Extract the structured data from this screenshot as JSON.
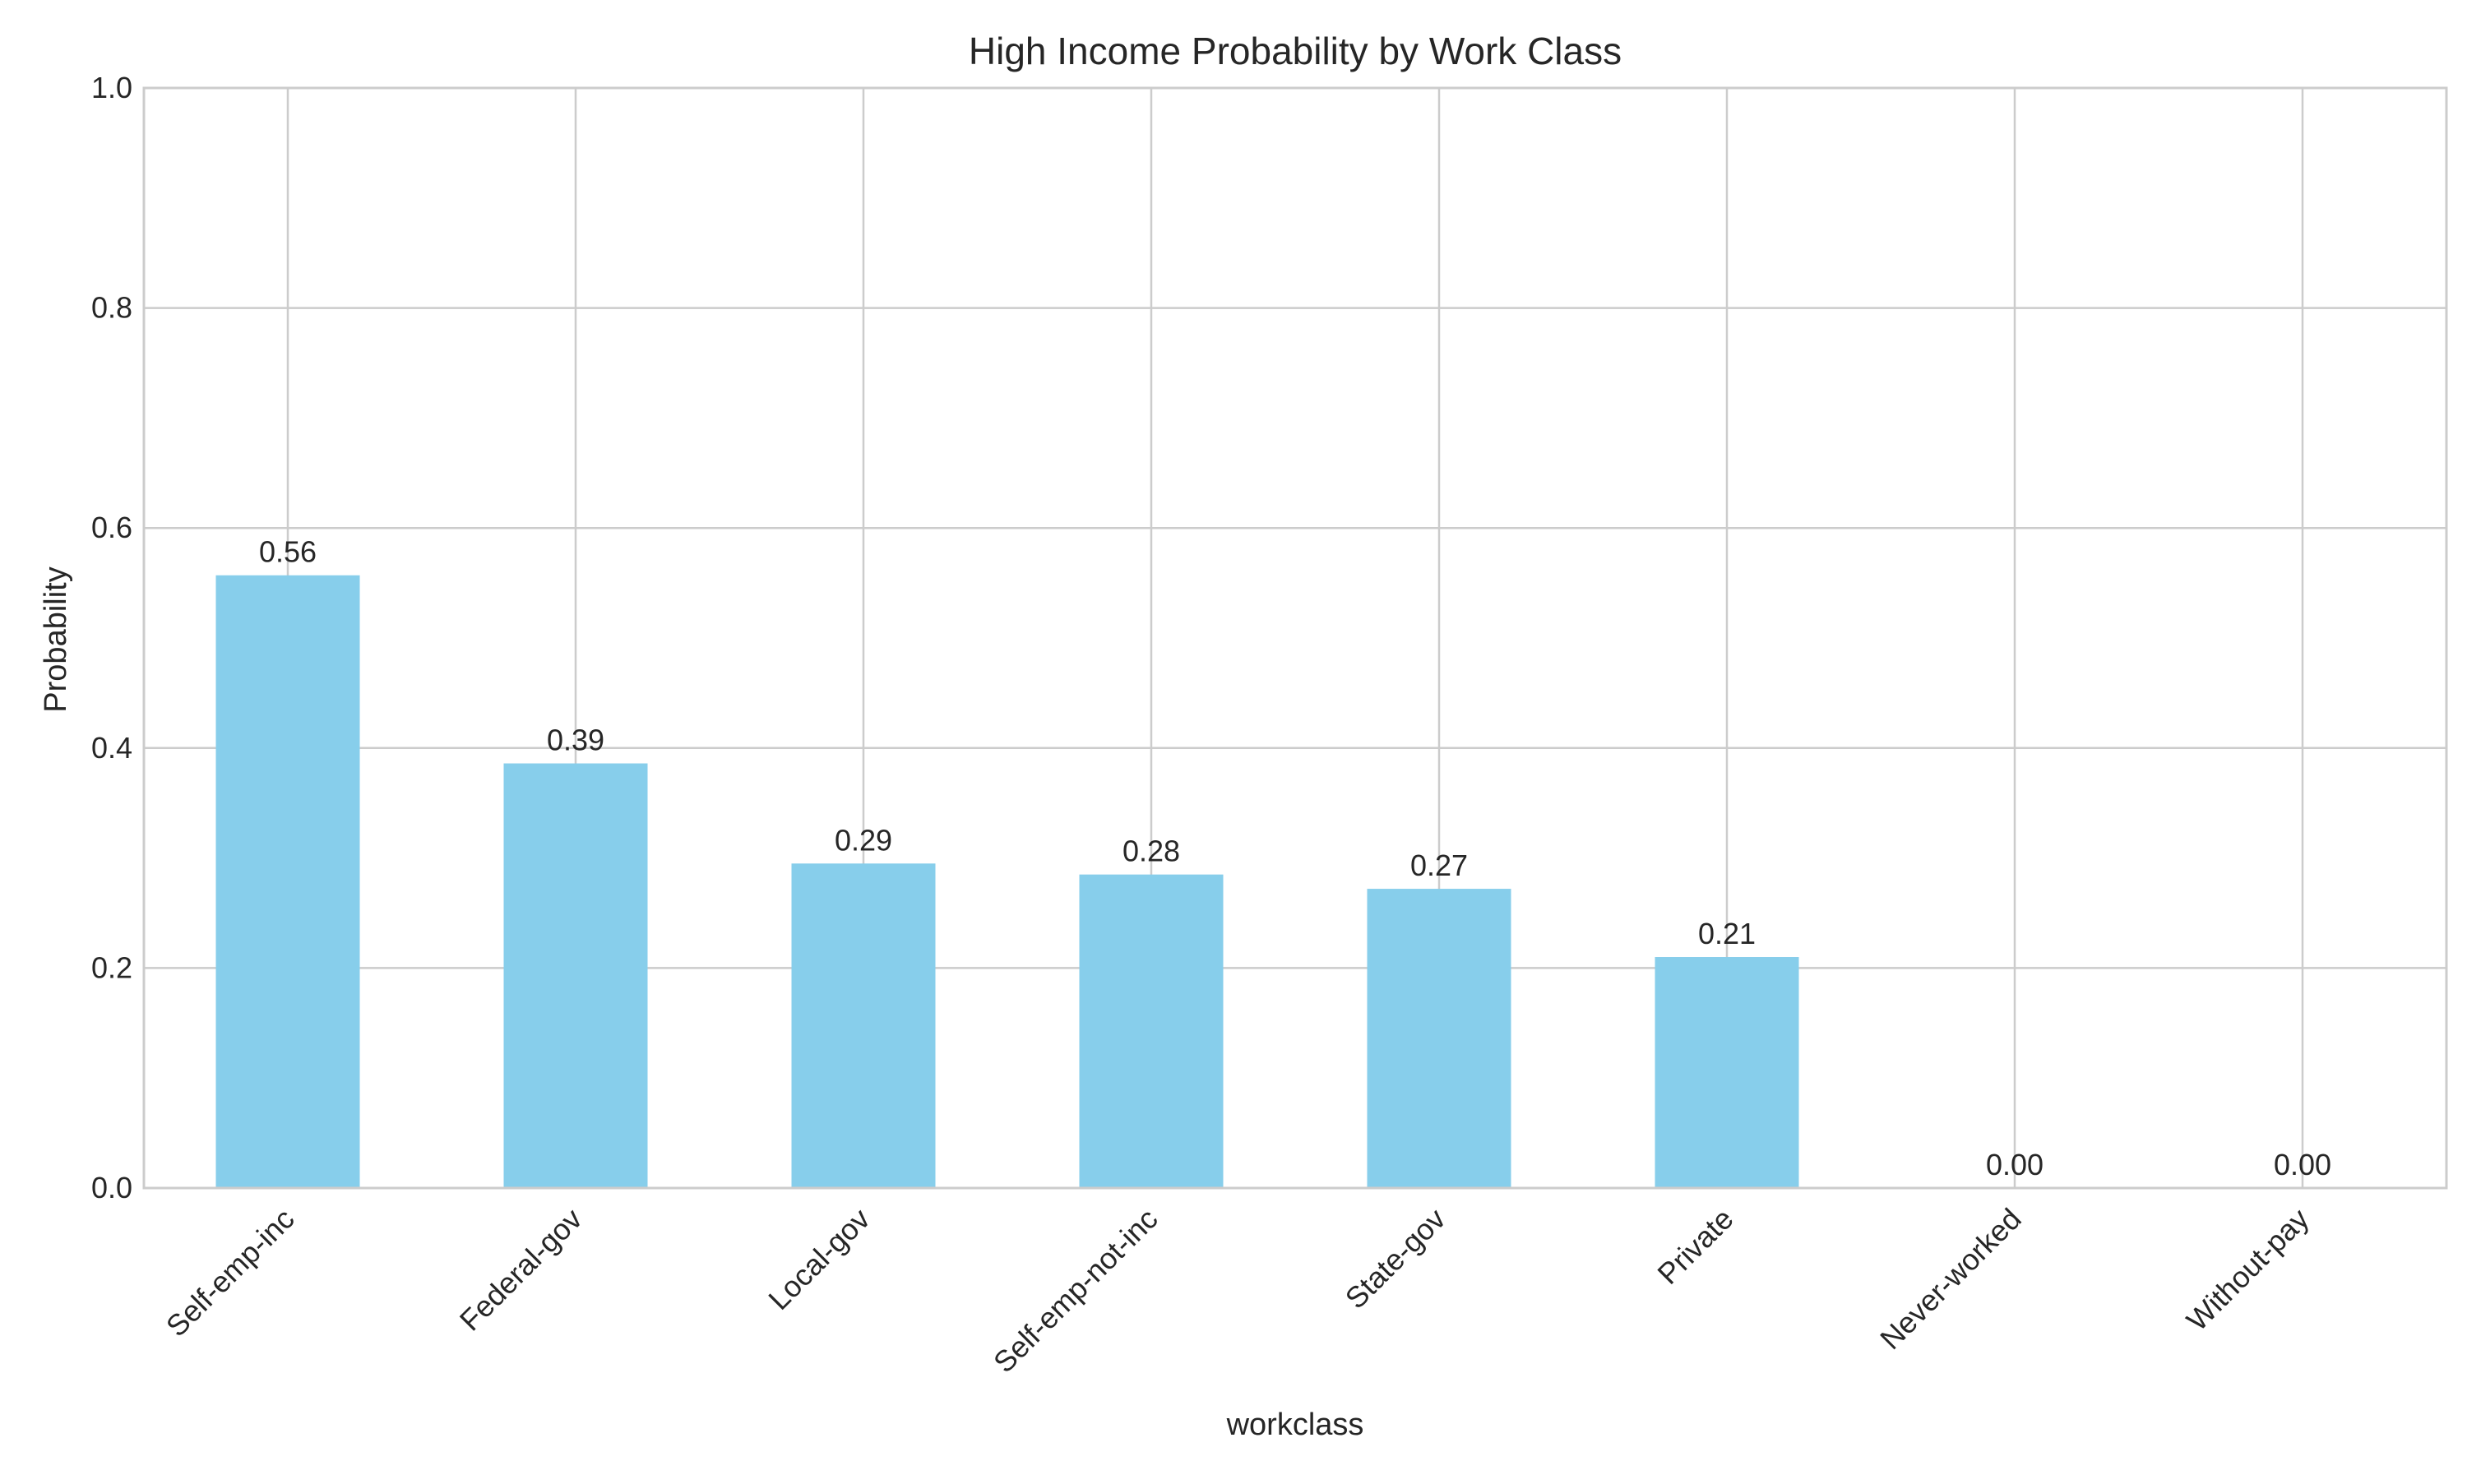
{
  "chart_data": {
    "type": "bar",
    "title": "High Income Probability by Work Class",
    "xlabel": "workclass",
    "ylabel": "Probability",
    "ylim": [
      0,
      1.0
    ],
    "yticks": [
      0.0,
      0.2,
      0.4,
      0.6,
      0.8,
      1.0
    ],
    "ytick_labels": [
      "0.0",
      "0.2",
      "0.4",
      "0.6",
      "0.8",
      "1.0"
    ],
    "categories": [
      "Self-emp-inc",
      "Federal-gov",
      "Local-gov",
      "Self-emp-not-inc",
      "State-gov",
      "Private",
      "Never-worked",
      "Without-pay"
    ],
    "values": [
      0.557,
      0.386,
      0.295,
      0.285,
      0.272,
      0.21,
      0.0,
      0.0
    ],
    "value_labels": [
      "0.56",
      "0.39",
      "0.29",
      "0.28",
      "0.27",
      "0.21",
      "0.00",
      "0.00"
    ],
    "bar_color": "#87ceeb",
    "grid": true
  }
}
